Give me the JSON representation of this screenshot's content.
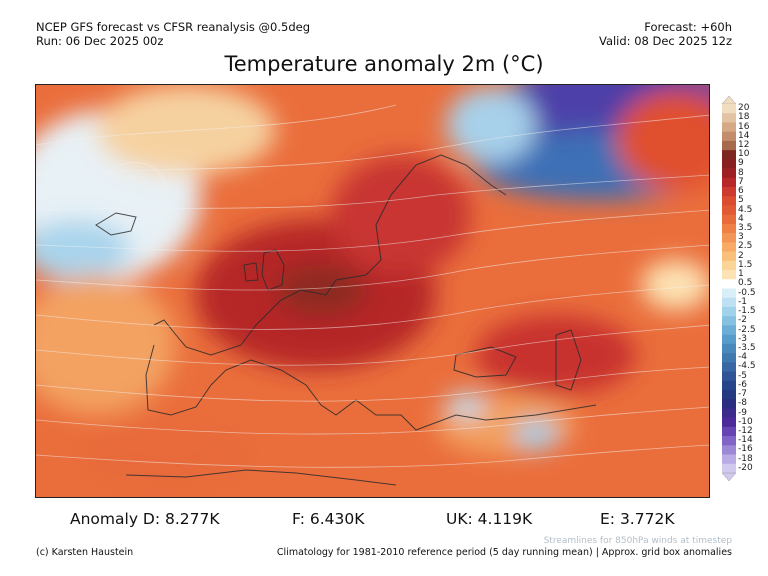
{
  "header": {
    "line1": "NCEP GFS forecast vs CFSR reanalysis @0.5deg",
    "line2": "Run: 06 Dec 2025 00z",
    "forecast": "Forecast: +60h",
    "valid": "Valid: 08 Dec 2025 12z"
  },
  "title": "Temperature anomaly 2m (°C)",
  "colorbar": {
    "labels": [
      "20",
      "18",
      "16",
      "14",
      "12",
      "10",
      "9",
      "8",
      "7",
      "6",
      "5",
      "4.5",
      "4",
      "3.5",
      "3",
      "2.5",
      "2",
      "1.5",
      "1",
      "0.5",
      "-0.5",
      "-1",
      "-1.5",
      "-2",
      "-2.5",
      "-3",
      "-3.5",
      "-4",
      "-4.5",
      "-5",
      "-6",
      "-7",
      "-8",
      "-9",
      "-10",
      "-12",
      "-14",
      "-16",
      "-18",
      "-20"
    ],
    "colors": [
      "#f0ddc0",
      "#e2c3a3",
      "#d5a986",
      "#c38c6b",
      "#a86a4c",
      "#7d2622",
      "#8a1f22",
      "#9e2023",
      "#b8282a",
      "#cc3a30",
      "#db4d31",
      "#e25a33",
      "#e86b3a",
      "#ef8046",
      "#f39556",
      "#f7ab66",
      "#f9c07c",
      "#fbd497",
      "#fde3b4",
      "#ffffff",
      "#d8eef8",
      "#bde1f2",
      "#a1d2ec",
      "#86c1e2",
      "#6caed6",
      "#579cca",
      "#4a89bc",
      "#4078b0",
      "#3867a4",
      "#2f5597",
      "#26448a",
      "#233a80",
      "#2a2d80",
      "#3c2a8c",
      "#4d2a99",
      "#6644b2",
      "#8165c6",
      "#9d88d6",
      "#b9abe4",
      "#d2c9ef"
    ]
  },
  "stats": {
    "d": "Anomaly D: 8.277K",
    "f": "F: 6.430K",
    "uk": "UK: 4.119K",
    "e": "E: 3.772K"
  },
  "footer": {
    "streamlines": "Streamlines for 850hPa winds at timestep",
    "credit": "(c) Karsten Haustein",
    "climatology": "Climatology for 1981-2010 reference period (5 day running mean) | Approx. grid box anomalies"
  }
}
